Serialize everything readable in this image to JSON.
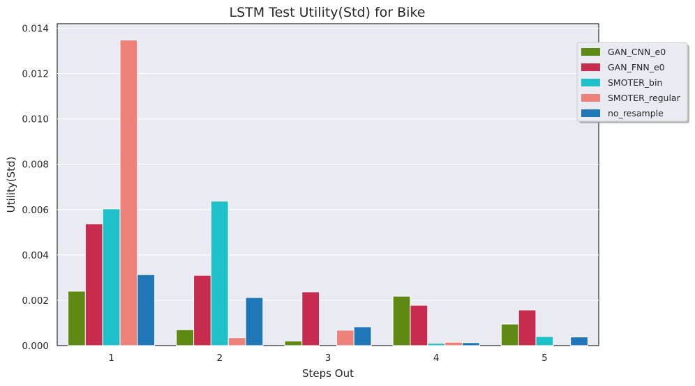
{
  "chart_data": {
    "type": "bar",
    "title": "LSTM Test Utility(Std) for Bike",
    "xlabel": "Steps Out",
    "ylabel": "Utility(Std)",
    "categories": [
      "1",
      "2",
      "3",
      "4",
      "5"
    ],
    "ylim": [
      0,
      0.0142
    ],
    "yticks": [
      "0.000",
      "0.002",
      "0.004",
      "0.006",
      "0.008",
      "0.010",
      "0.012",
      "0.014"
    ],
    "ytick_values": [
      0,
      0.002,
      0.004,
      0.006,
      0.008,
      0.01,
      0.012,
      0.014
    ],
    "grid": true,
    "legend_position": "top-right",
    "series": [
      {
        "name": "GAN_CNN_e0",
        "color": "#5e8a13",
        "values": [
          0.0024,
          0.0007,
          0.0002,
          0.00218,
          0.00095
        ]
      },
      {
        "name": "GAN_FNN_e0",
        "color": "#c72c4e",
        "values": [
          0.00537,
          0.0031,
          0.00237,
          0.00178,
          0.00157
        ]
      },
      {
        "name": "SMOTER_bin",
        "color": "#1ec0c9",
        "values": [
          0.00603,
          0.00637,
          0.0,
          0.0001,
          0.0004
        ]
      },
      {
        "name": "SMOTER_regular",
        "color": "#ee827a",
        "values": [
          0.01348,
          0.00035,
          0.00068,
          0.00015,
          0.0
        ]
      },
      {
        "name": "no_resample",
        "color": "#1f77b8",
        "values": [
          0.00313,
          0.00212,
          0.00083,
          0.00013,
          0.00038
        ]
      }
    ]
  }
}
